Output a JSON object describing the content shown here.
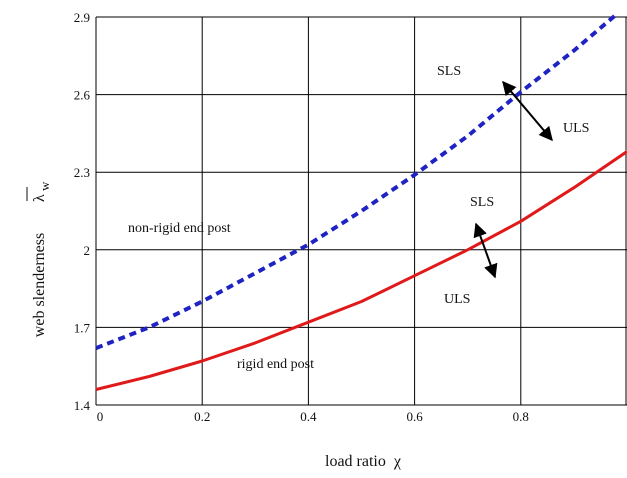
{
  "chart_data": {
    "type": "line",
    "title": "",
    "xlabel": "load ratio",
    "xlabel_symbol": "χ",
    "ylabel": "web slenderness",
    "ylabel_symbol": "λ",
    "ylabel_subscript": "w",
    "xlim": [
      0,
      1.0
    ],
    "ylim": [
      1.4,
      2.9
    ],
    "x_ticks": [
      "0",
      "0.2",
      "0.4",
      "0.6",
      "0.8"
    ],
    "y_ticks": [
      "1.4",
      "1.7",
      "2",
      "2.3",
      "2.6",
      "2.9"
    ],
    "grid": true,
    "series": [
      {
        "style": "dashed",
        "color": "#1f23c4",
        "x": [
          0,
          0.1,
          0.2,
          0.3,
          0.4,
          0.5,
          0.6,
          0.7,
          0.8,
          0.9,
          0.98
        ],
        "y": [
          1.62,
          1.7,
          1.8,
          1.91,
          2.02,
          2.15,
          2.29,
          2.44,
          2.61,
          2.77,
          2.91
        ]
      },
      {
        "style": "solid",
        "color": "#e0191a",
        "x": [
          0,
          0.1,
          0.2,
          0.3,
          0.4,
          0.5,
          0.6,
          0.7,
          0.8,
          0.9,
          1.0
        ],
        "y": [
          1.46,
          1.51,
          1.57,
          1.64,
          1.72,
          1.8,
          1.9,
          2.0,
          2.11,
          2.24,
          2.38
        ]
      }
    ],
    "annotations": [
      {
        "id": "non-rigid",
        "text": "non-rigid end post"
      },
      {
        "id": "rigid",
        "text": "rigid end post"
      },
      {
        "id": "sls-upper",
        "text": "SLS"
      },
      {
        "id": "uls-upper",
        "text": "ULS"
      },
      {
        "id": "sls-lower",
        "text": "SLS"
      },
      {
        "id": "uls-lower",
        "text": "ULS"
      }
    ]
  },
  "colors": {
    "dashed_series": "#1f23c4",
    "solid_series": "#e0191a",
    "grid": "#000000"
  }
}
